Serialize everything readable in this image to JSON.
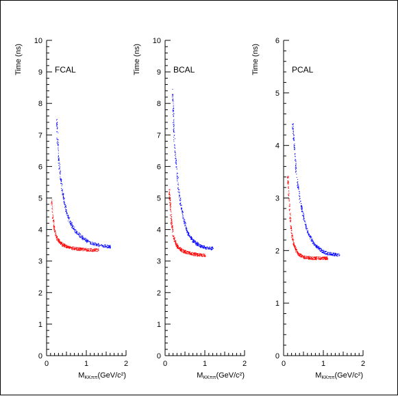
{
  "chart_data": [
    {
      "type": "scatter",
      "panel_label": "FCAL",
      "ylabel": "Time (ns)",
      "xlabel_main": "M",
      "xlabel_sub": "KKππ",
      "xlabel_tail": "(GeV/c²)",
      "xlim": [
        0,
        2
      ],
      "ylim": [
        0,
        10
      ],
      "xticks": [
        "0",
        "1",
        "2"
      ],
      "yticks": [
        "0",
        "1",
        "2",
        "3",
        "4",
        "5",
        "6",
        "7",
        "8",
        "9",
        "10"
      ],
      "series": [
        {
          "color": "#0000ff",
          "x": [
            0.25,
            0.28,
            0.3,
            0.33,
            0.35,
            0.4,
            0.45,
            0.5,
            0.55,
            0.6,
            0.7,
            0.8,
            0.9,
            1.0,
            1.1,
            1.2,
            1.3,
            1.4,
            1.5,
            1.6
          ],
          "y": [
            7.4,
            6.6,
            6.2,
            5.8,
            5.6,
            5.15,
            4.8,
            4.55,
            4.35,
            4.2,
            4.0,
            3.85,
            3.75,
            3.65,
            3.6,
            3.55,
            3.52,
            3.5,
            3.48,
            3.46
          ]
        },
        {
          "color": "#ff0000",
          "x": [
            0.12,
            0.15,
            0.18,
            0.2,
            0.25,
            0.3,
            0.35,
            0.4,
            0.5,
            0.6,
            0.7,
            0.8,
            0.9,
            1.0,
            1.1,
            1.2,
            1.3
          ],
          "y": [
            4.9,
            4.4,
            4.1,
            3.95,
            3.75,
            3.65,
            3.58,
            3.53,
            3.47,
            3.43,
            3.41,
            3.39,
            3.38,
            3.37,
            3.36,
            3.36,
            3.35
          ]
        }
      ]
    },
    {
      "type": "scatter",
      "panel_label": "BCAL",
      "ylabel": "Time (ns)",
      "xlabel_main": "M",
      "xlabel_sub": "KKππ",
      "xlabel_tail": "(GeV/c²)",
      "xlim": [
        0,
        2
      ],
      "ylim": [
        0,
        10
      ],
      "xticks": [
        "0",
        "1",
        "2"
      ],
      "yticks": [
        "0",
        "1",
        "2",
        "3",
        "4",
        "5",
        "6",
        "7",
        "8",
        "9",
        "10"
      ],
      "series": [
        {
          "color": "#0000ff",
          "x": [
            0.18,
            0.2,
            0.22,
            0.25,
            0.28,
            0.3,
            0.35,
            0.4,
            0.45,
            0.5,
            0.55,
            0.6,
            0.7,
            0.8,
            0.9,
            1.0,
            1.1,
            1.2
          ],
          "y": [
            8.3,
            7.6,
            7.0,
            6.4,
            6.0,
            5.7,
            5.1,
            4.7,
            4.4,
            4.15,
            3.95,
            3.82,
            3.65,
            3.55,
            3.48,
            3.44,
            3.42,
            3.41
          ]
        },
        {
          "color": "#ff0000",
          "x": [
            0.1,
            0.12,
            0.15,
            0.18,
            0.2,
            0.25,
            0.3,
            0.35,
            0.4,
            0.5,
            0.6,
            0.7,
            0.8,
            0.9,
            1.0
          ],
          "y": [
            5.2,
            4.8,
            4.3,
            4.0,
            3.8,
            3.6,
            3.48,
            3.41,
            3.36,
            3.3,
            3.26,
            3.23,
            3.21,
            3.2,
            3.19
          ]
        }
      ]
    },
    {
      "type": "scatter",
      "panel_label": "PCAL",
      "ylabel": "Time (ns)",
      "xlabel_main": "M",
      "xlabel_sub": "KKππ",
      "xlabel_tail": "(GeV/c²)",
      "xlim": [
        0,
        2
      ],
      "ylim": [
        0,
        6
      ],
      "xticks": [
        "0",
        "1",
        "2"
      ],
      "yticks": [
        "0",
        "1",
        "2",
        "3",
        "4",
        "5",
        "6"
      ],
      "series": [
        {
          "color": "#0000ff",
          "x": [
            0.22,
            0.25,
            0.28,
            0.3,
            0.35,
            0.4,
            0.45,
            0.5,
            0.55,
            0.6,
            0.7,
            0.8,
            0.9,
            1.0,
            1.1,
            1.2,
            1.3,
            1.4
          ],
          "y": [
            4.4,
            4.1,
            3.8,
            3.6,
            3.25,
            3.0,
            2.8,
            2.62,
            2.48,
            2.37,
            2.2,
            2.1,
            2.03,
            1.98,
            1.95,
            1.94,
            1.93,
            1.92
          ]
        },
        {
          "color": "#ff0000",
          "x": [
            0.1,
            0.12,
            0.15,
            0.18,
            0.2,
            0.25,
            0.3,
            0.35,
            0.4,
            0.5,
            0.6,
            0.7,
            0.8,
            0.9,
            1.0,
            1.1
          ],
          "y": [
            3.4,
            3.05,
            2.7,
            2.45,
            2.3,
            2.12,
            2.02,
            1.96,
            1.92,
            1.88,
            1.87,
            1.86,
            1.86,
            1.86,
            1.86,
            1.86
          ]
        }
      ]
    }
  ]
}
